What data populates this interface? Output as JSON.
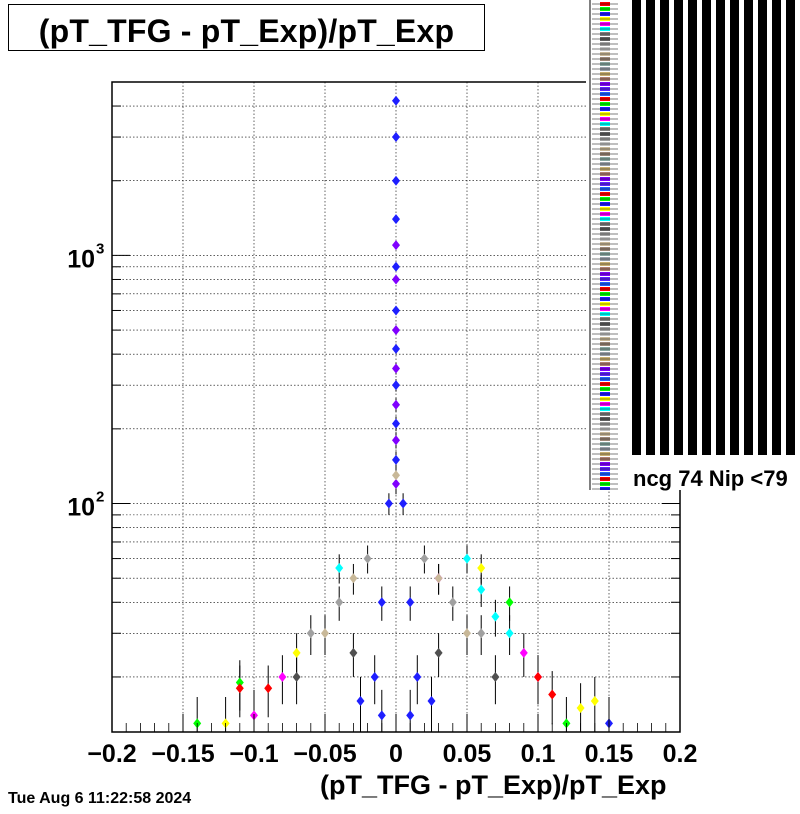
{
  "title": "(pT_TFG - pT_Exp)/pT_Exp",
  "timestamp": "Tue Aug  6 11:22:58 2024",
  "legend": {
    "visible_entry_fragment": "ncg 74 Nip <79"
  },
  "colors": {
    "frame": "#000000",
    "grid": "#000000",
    "primary_series": "#1f1fff",
    "secondary_series": "#8000ff"
  },
  "chart_data": {
    "type": "scatter",
    "title": "(pT_TFG - pT_Exp)/pT_Exp",
    "xlabel": "(pT_TFG - pT_Exp)/pT_Exp",
    "ylabel": "",
    "xlim": [
      -0.2,
      0.2
    ],
    "ylim": [
      12,
      5000
    ],
    "y_scale": "log",
    "grid": true,
    "x_ticks": [
      -0.2,
      -0.15,
      -0.1,
      -0.05,
      0,
      0.05,
      0.1,
      0.15,
      0.2
    ],
    "x_tick_labels": [
      "−0.2",
      "−0.15",
      "−0.1",
      "−0.05",
      "0",
      "0.05",
      "0.1",
      "0.15",
      "0.2"
    ],
    "y_tick_labels": [
      {
        "value": 100,
        "base": "10",
        "exp": "2"
      },
      {
        "value": 1000,
        "base": "10",
        "exp": "3"
      }
    ],
    "series": [
      {
        "color": "#1f1fff",
        "points": [
          [
            0.0,
            4200
          ],
          [
            0.0,
            3000
          ],
          [
            0.0,
            2000
          ],
          [
            0.0,
            1400
          ],
          [
            0.0,
            900
          ],
          [
            0.0,
            600
          ],
          [
            0.0,
            420
          ],
          [
            0.0,
            300
          ],
          [
            0.0,
            210
          ],
          [
            0.0,
            150
          ],
          [
            -0.005,
            100
          ],
          [
            0.005,
            100
          ],
          [
            -0.01,
            40
          ],
          [
            0.01,
            40
          ],
          [
            -0.015,
            20
          ],
          [
            0.015,
            20
          ],
          [
            -0.01,
            14
          ],
          [
            0.01,
            14
          ],
          [
            0.15,
            13
          ],
          [
            -0.025,
            16
          ],
          [
            0.025,
            16
          ]
        ]
      },
      {
        "color": "#8000ff",
        "points": [
          [
            0.0,
            1100
          ],
          [
            0.0,
            800
          ],
          [
            0.0,
            500
          ],
          [
            0.0,
            350
          ],
          [
            0.0,
            250
          ],
          [
            0.0,
            180
          ],
          [
            0.0,
            120
          ]
        ]
      },
      {
        "color": "#00ffff",
        "points": [
          [
            0.05,
            60
          ],
          [
            0.06,
            45
          ],
          [
            0.07,
            35
          ],
          [
            0.08,
            30
          ],
          [
            -0.04,
            55
          ]
        ]
      },
      {
        "color": "#ff00ff",
        "points": [
          [
            0.03,
            50
          ],
          [
            0.09,
            25
          ],
          [
            0.1,
            20
          ],
          [
            -0.1,
            14
          ],
          [
            -0.08,
            20
          ]
        ]
      },
      {
        "color": "#ffff00",
        "points": [
          [
            0.06,
            55
          ],
          [
            0.14,
            16
          ],
          [
            0.13,
            15
          ],
          [
            -0.07,
            25
          ],
          [
            -0.12,
            13
          ]
        ]
      },
      {
        "color": "#00ff00",
        "points": [
          [
            0.08,
            40
          ],
          [
            -0.11,
            19
          ],
          [
            -0.14,
            13
          ],
          [
            0.12,
            13
          ]
        ]
      },
      {
        "color": "#ff0000",
        "points": [
          [
            -0.11,
            18
          ],
          [
            0.1,
            20
          ],
          [
            0.11,
            17
          ],
          [
            -0.09,
            18
          ]
        ]
      },
      {
        "color": "#a0a0a0",
        "points": [
          [
            -0.06,
            30
          ],
          [
            -0.04,
            40
          ],
          [
            0.04,
            40
          ],
          [
            0.06,
            30
          ],
          [
            -0.02,
            60
          ],
          [
            0.02,
            60
          ]
        ]
      },
      {
        "color": "#c8b898",
        "points": [
          [
            -0.05,
            30
          ],
          [
            0.05,
            30
          ],
          [
            -0.03,
            50
          ],
          [
            0.03,
            50
          ],
          [
            0.0,
            130
          ]
        ]
      },
      {
        "color": "#505050",
        "points": [
          [
            -0.07,
            20
          ],
          [
            0.07,
            20
          ],
          [
            -0.03,
            25
          ],
          [
            0.03,
            25
          ]
        ]
      }
    ]
  }
}
